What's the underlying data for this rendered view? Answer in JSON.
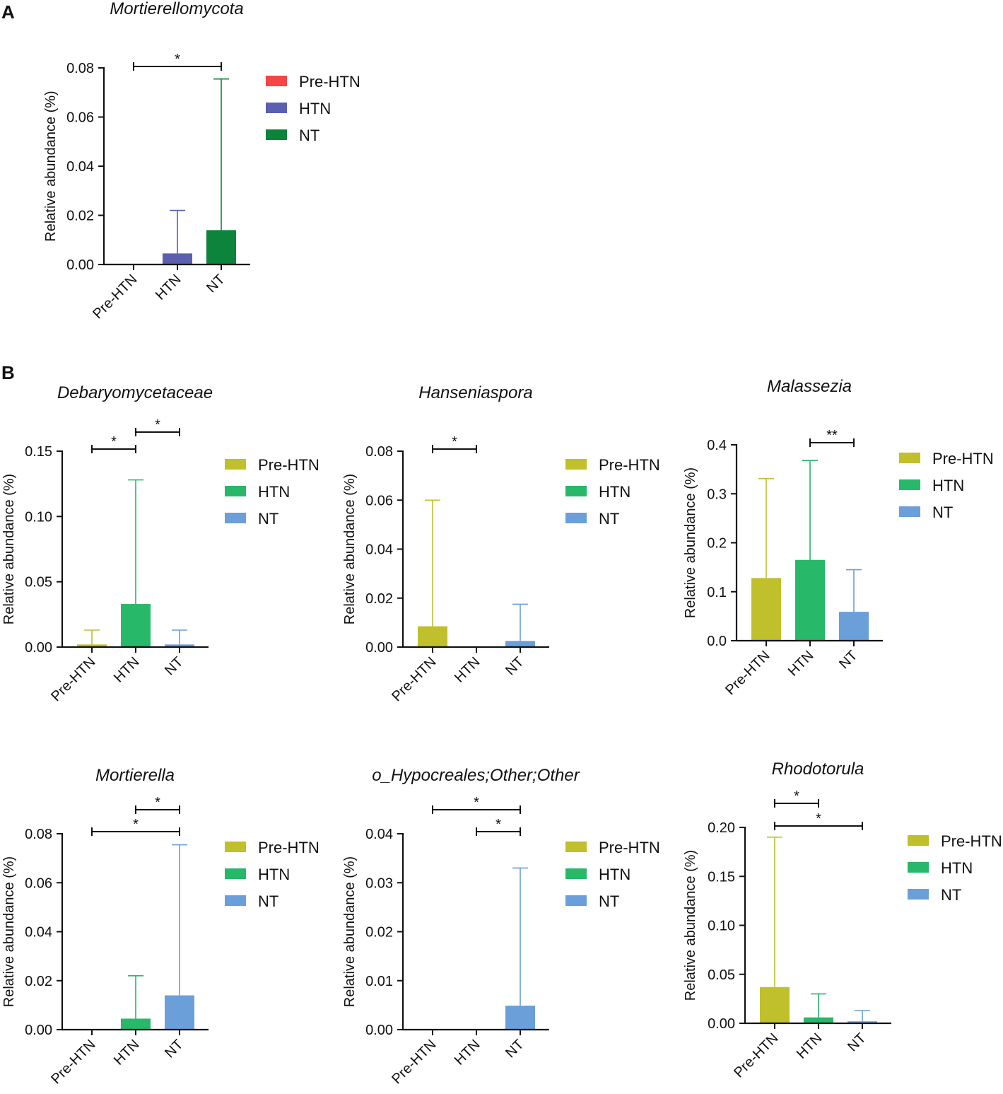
{
  "figure": {
    "panel_a_label": "A",
    "panel_b_label": "B"
  },
  "colors": {
    "panelA": [
      "#f44646",
      "#5a5fae",
      "#0c843c"
    ],
    "panelB": [
      "#c0bf2c",
      "#27b86a",
      "#6a9fd9"
    ]
  },
  "chart_data": [
    {
      "id": "mortierellomycota",
      "panel": "A",
      "type": "bar",
      "title": "Mortierellomycota",
      "ylabel": "Relative abundance (%)",
      "categories": [
        "Pre-HTN",
        "HTN",
        "NT"
      ],
      "values": [
        0.0,
        0.0045,
        0.014
      ],
      "errors": [
        0.0,
        0.022,
        0.0755
      ],
      "ylim": [
        0,
        0.08
      ],
      "yticks": [
        "0.00",
        "0.02",
        "0.04",
        "0.06",
        "0.08"
      ],
      "legend": [
        "Pre-HTN",
        "HTN",
        "NT"
      ],
      "palette": "panelA",
      "significance": [
        {
          "from": "Pre-HTN",
          "to": "NT",
          "label": "*"
        }
      ]
    },
    {
      "id": "debaryomycetaceae",
      "panel": "B",
      "type": "bar",
      "title": "Debaryomycetaceae",
      "ylabel": "Relative abundance (%)",
      "categories": [
        "Pre-HTN",
        "HTN",
        "NT"
      ],
      "values": [
        0.002,
        0.033,
        0.002
      ],
      "errors": [
        0.013,
        0.128,
        0.013
      ],
      "ylim": [
        0,
        0.15
      ],
      "yticks": [
        "0.00",
        "0.05",
        "0.10",
        "0.15"
      ],
      "legend": [
        "Pre-HTN",
        "HTN",
        "NT"
      ],
      "palette": "panelB",
      "significance": [
        {
          "from": "Pre-HTN",
          "to": "HTN",
          "label": "*"
        },
        {
          "from": "HTN",
          "to": "NT",
          "label": "*"
        }
      ]
    },
    {
      "id": "hanseniaspora",
      "panel": "B",
      "type": "bar",
      "title": "Hanseniaspora",
      "ylabel": "Relative abundance (%)",
      "categories": [
        "Pre-HTN",
        "HTN",
        "NT"
      ],
      "values": [
        0.0085,
        0.0,
        0.0025
      ],
      "errors": [
        0.06,
        0.0,
        0.0175
      ],
      "ylim": [
        0,
        0.08
      ],
      "yticks": [
        "0.00",
        "0.02",
        "0.04",
        "0.06",
        "0.08"
      ],
      "legend": [
        "Pre-HTN",
        "HTN",
        "NT"
      ],
      "palette": "panelB",
      "significance": [
        {
          "from": "Pre-HTN",
          "to": "HTN",
          "label": "*"
        }
      ]
    },
    {
      "id": "malassezia",
      "panel": "B",
      "type": "bar",
      "title": "Malassezia",
      "ylabel": "Relative abundance (%)",
      "categories": [
        "Pre-HTN",
        "HTN",
        "NT"
      ],
      "values": [
        0.128,
        0.165,
        0.059
      ],
      "errors": [
        0.331,
        0.368,
        0.145
      ],
      "ylim": [
        0,
        0.4
      ],
      "yticks": [
        "0.0",
        "0.1",
        "0.2",
        "0.3",
        "0.4"
      ],
      "legend": [
        "Pre-HTN",
        "HTN",
        "NT"
      ],
      "palette": "panelB",
      "significance": [
        {
          "from": "HTN",
          "to": "NT",
          "label": "**"
        }
      ]
    },
    {
      "id": "mortierella",
      "panel": "B",
      "type": "bar",
      "title": "Mortierella",
      "ylabel": "Relative abundance (%)",
      "categories": [
        "Pre-HTN",
        "HTN",
        "NT"
      ],
      "values": [
        0.0,
        0.0045,
        0.014
      ],
      "errors": [
        0.0,
        0.022,
        0.0755
      ],
      "ylim": [
        0,
        0.08
      ],
      "yticks": [
        "0.00",
        "0.02",
        "0.04",
        "0.06",
        "0.08"
      ],
      "legend": [
        "Pre-HTN",
        "HTN",
        "NT"
      ],
      "palette": "panelB",
      "significance": [
        {
          "from": "HTN",
          "to": "NT",
          "label": "*"
        },
        {
          "from": "Pre-HTN",
          "to": "NT",
          "label": "*"
        }
      ]
    },
    {
      "id": "hypocreales",
      "panel": "B",
      "type": "bar",
      "title": "o_Hypocreales;Other;Other",
      "ylabel": "Relative abundance (%)",
      "categories": [
        "Pre-HTN",
        "HTN",
        "NT"
      ],
      "values": [
        0.0,
        0.0,
        0.0049
      ],
      "errors": [
        0.0,
        0.0,
        0.033
      ],
      "ylim": [
        0,
        0.04
      ],
      "yticks": [
        "0.00",
        "0.01",
        "0.02",
        "0.03",
        "0.04"
      ],
      "legend": [
        "Pre-HTN",
        "HTN",
        "NT"
      ],
      "palette": "panelB",
      "significance": [
        {
          "from": "Pre-HTN",
          "to": "NT",
          "label": "*"
        },
        {
          "from": "HTN",
          "to": "NT",
          "label": "*"
        }
      ]
    },
    {
      "id": "rhodotorula",
      "panel": "B",
      "type": "bar",
      "title": "Rhodotorula",
      "ylabel": "Relative abundance (%)",
      "categories": [
        "Pre-HTN",
        "HTN",
        "NT"
      ],
      "values": [
        0.037,
        0.006,
        0.002
      ],
      "errors": [
        0.19,
        0.03,
        0.013
      ],
      "ylim": [
        0,
        0.2
      ],
      "yticks": [
        "0.00",
        "0.05",
        "0.10",
        "0.15",
        "0.20"
      ],
      "legend": [
        "Pre-HTN",
        "HTN",
        "NT"
      ],
      "palette": "panelB",
      "significance": [
        {
          "from": "Pre-HTN",
          "to": "HTN",
          "label": "*"
        },
        {
          "from": "Pre-HTN",
          "to": "NT",
          "label": "*"
        }
      ]
    }
  ]
}
